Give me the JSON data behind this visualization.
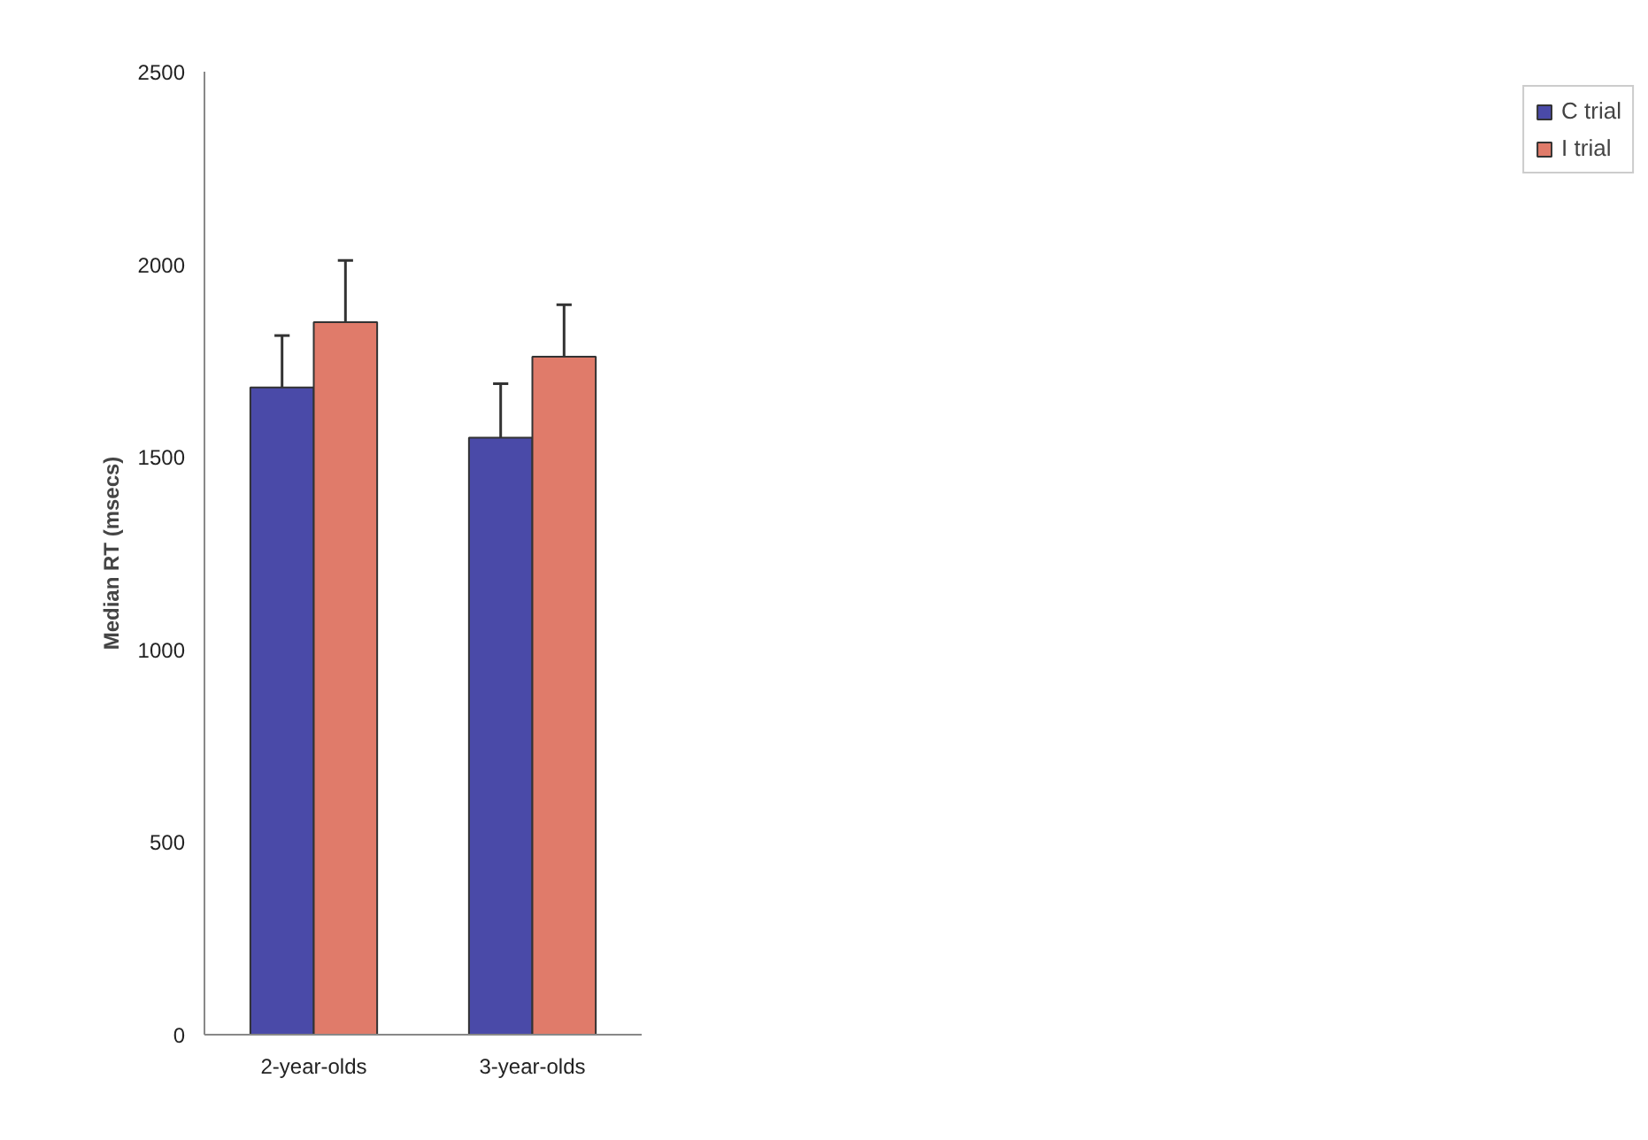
{
  "chart_data": {
    "type": "bar",
    "ylabel": "Median RT (msecs)",
    "categories": [
      "2-year-olds",
      "3-year-olds"
    ],
    "series": [
      {
        "name": "C trial",
        "color": "#4a4aa8",
        "values": [
          1680,
          1550
        ],
        "errors": [
          [
            1680,
            1815
          ],
          [
            1550,
            1690
          ]
        ]
      },
      {
        "name": "I trial",
        "color": "#e07b6a",
        "values": [
          1850,
          1760
        ],
        "errors": [
          [
            1850,
            2010
          ],
          [
            1760,
            1895
          ]
        ]
      }
    ],
    "ylim": [
      0,
      2500
    ],
    "yticks": [
      0,
      500,
      1000,
      1500,
      2000,
      2500
    ],
    "grid": false,
    "legend": "right"
  }
}
